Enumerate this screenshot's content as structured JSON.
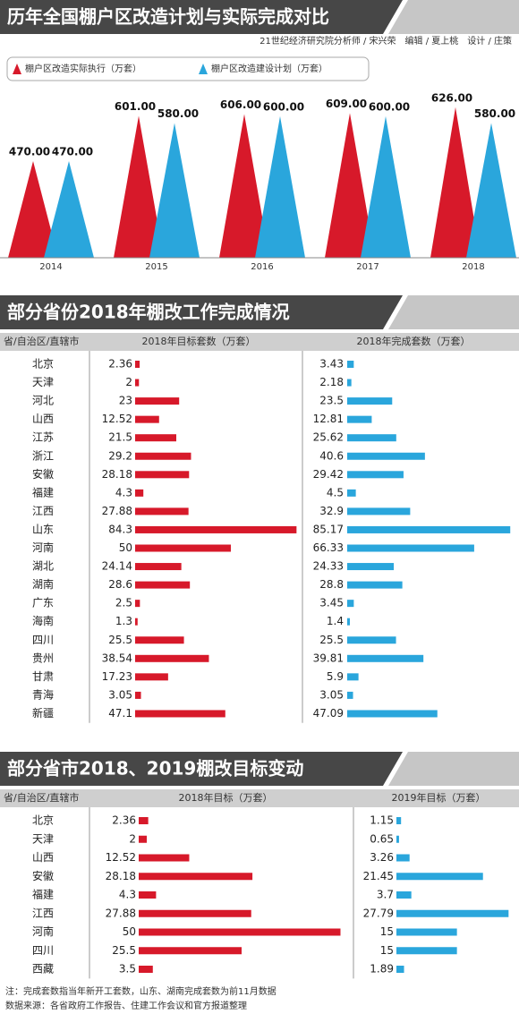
{
  "chart_data": [
    {
      "type": "bar",
      "bar_shape": "triangle",
      "title": "历年全国棚户区改造计划与实际完成对比",
      "subtitle": "21世纪经济研究院分析师 / 宋兴荣　编辑 / 夏上桃　设计 / 庄策",
      "categories": [
        "2014",
        "2015",
        "2016",
        "2017",
        "2018"
      ],
      "ylim": [
        190,
        640
      ],
      "series": [
        {
          "name": "棚户区改造实际执行（万套）",
          "color": "#d7192a",
          "values": [
            470,
            601,
            606,
            609,
            626
          ],
          "value_labels": [
            "470.00",
            "601.00",
            "606.00",
            "609.00",
            "626.00"
          ]
        },
        {
          "name": "棚户区改造建设计划（万套）",
          "color": "#2aa6dc",
          "values": [
            470,
            580,
            600,
            600,
            580
          ],
          "value_labels": [
            "470.00",
            "580.00",
            "600.00",
            "600.00",
            "580.00"
          ]
        }
      ]
    },
    {
      "type": "bar",
      "orientation": "horizontal",
      "title": "部分省份2018年棚改工作完成情况",
      "category_header": "省/自治区/直辖市",
      "categories": [
        "北京",
        "天津",
        "河北",
        "山西",
        "江苏",
        "浙江",
        "安徽",
        "福建",
        "江西",
        "山东",
        "河南",
        "湖北",
        "湖南",
        "广东",
        "海南",
        "四川",
        "贵州",
        "甘肃",
        "青海",
        "新疆"
      ],
      "xlim": [
        0,
        86
      ],
      "series": [
        {
          "name": "2018年目标套数（万套）",
          "color": "#d7192a",
          "values": [
            2.36,
            2,
            23,
            12.52,
            21.5,
            29.2,
            28.18,
            4.3,
            27.88,
            84.3,
            50,
            24.14,
            28.6,
            2.5,
            1.3,
            25.5,
            38.54,
            17.23,
            3.05,
            47.1
          ]
        },
        {
          "name": "2018年完成套数（万套）",
          "color": "#2aa6dc",
          "values": [
            3.43,
            2.18,
            23.5,
            12.81,
            25.62,
            40.6,
            29.42,
            4.5,
            32.9,
            85.17,
            66.33,
            24.33,
            28.8,
            3.45,
            1.4,
            25.5,
            39.81,
            5.9,
            3.05,
            47.09
          ]
        }
      ]
    },
    {
      "type": "bar",
      "orientation": "horizontal",
      "title": "部分省市2018、2019棚改目标变动",
      "category_header": "省/自治区/直辖市",
      "categories": [
        "北京",
        "天津",
        "山西",
        "安徽",
        "福建",
        "江西",
        "河南",
        "四川",
        "西藏"
      ],
      "xlim": [
        0,
        51
      ],
      "series": [
        {
          "name": "2018年目标（万套）",
          "color": "#d7192a",
          "values": [
            2.36,
            2,
            12.52,
            28.18,
            4.3,
            27.88,
            50,
            25.5,
            3.5
          ]
        },
        {
          "name": "2019年目标（万套）",
          "color": "#2aa6dc",
          "values": [
            1.15,
            0.65,
            3.26,
            21.45,
            3.7,
            27.79,
            15,
            15,
            1.89
          ]
        }
      ]
    }
  ],
  "notes": [
    "注：完成套数指当年新开工套数，山东、湖南完成套数为前11月数据",
    "数据来源：各省政府工作报告、住建工作会议和官方报道整理"
  ]
}
